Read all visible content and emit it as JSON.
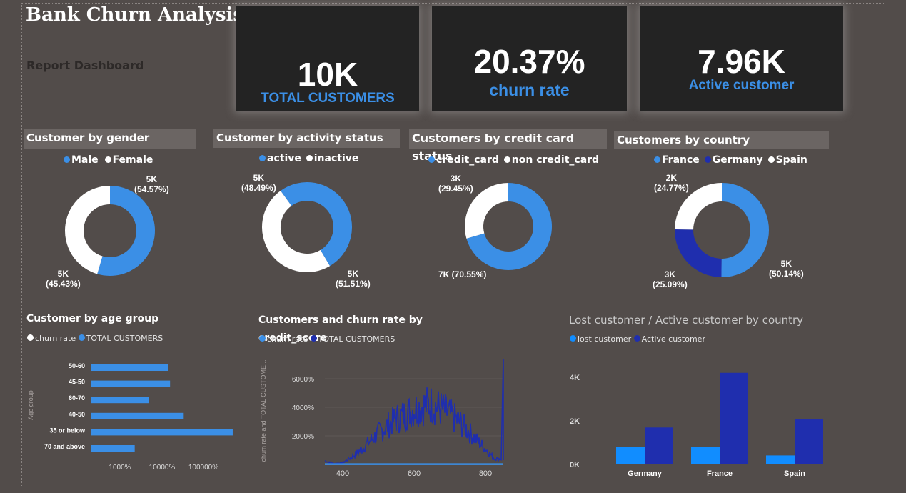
{
  "header": {
    "title": "Bank Churn Analysis",
    "subtitle": "Report Dashboard"
  },
  "kpis": [
    {
      "value": "10K",
      "label": "TOTAL CUSTOMERS"
    },
    {
      "value": "20.37%",
      "label": "churn rate"
    },
    {
      "value": "7.96K",
      "label": "Active customer"
    }
  ],
  "colors": {
    "blue": "#3b8fe6",
    "white": "#ffffff",
    "navy": "#1f2eae",
    "lightblue": "#118dff",
    "background": "#524c4a"
  },
  "chart_data": [
    {
      "type": "pie",
      "title": "Customer by gender",
      "legend": [
        "Male",
        "Female"
      ],
      "slices": [
        {
          "name": "Male",
          "value": 54.57,
          "label": "5K",
          "pct": "(54.57%)",
          "color": "#3b8fe6"
        },
        {
          "name": "Female",
          "value": 45.43,
          "label": "5K",
          "pct": "(45.43%)",
          "color": "#ffffff"
        }
      ]
    },
    {
      "type": "pie",
      "title": "Customer by activity status",
      "legend": [
        "active",
        "inactive"
      ],
      "slices": [
        {
          "name": "active",
          "value": 51.51,
          "label": "5K",
          "pct": "(51.51%)",
          "color": "#3b8fe6"
        },
        {
          "name": "inactive",
          "value": 48.49,
          "label": "5K",
          "pct": "(48.49%)",
          "color": "#ffffff"
        }
      ]
    },
    {
      "type": "pie",
      "title": "Customers by credit card status",
      "legend": [
        "credit_card",
        "non credit_card"
      ],
      "slices": [
        {
          "name": "credit_card",
          "value": 70.55,
          "label": "7K (70.55%)",
          "pct": "",
          "color": "#3b8fe6"
        },
        {
          "name": "non credit_card",
          "value": 29.45,
          "label": "3K",
          "pct": "(29.45%)",
          "color": "#ffffff"
        }
      ]
    },
    {
      "type": "pie",
      "title": "Customers by country",
      "legend": [
        "France",
        "Germany",
        "Spain"
      ],
      "slices": [
        {
          "name": "France",
          "value": 50.14,
          "label": "5K",
          "pct": "(50.14%)",
          "color": "#3b8fe6"
        },
        {
          "name": "Germany",
          "value": 25.09,
          "label": "3K",
          "pct": "(25.09%)",
          "color": "#1f2eae"
        },
        {
          "name": "Spain",
          "value": 24.77,
          "label": "2K",
          "pct": "(24.77%)",
          "color": "#ffffff"
        }
      ]
    },
    {
      "type": "bar",
      "orientation": "horizontal",
      "title": "Customer by age group",
      "legend": [
        "churn rate",
        "TOTAL CUSTOMERS"
      ],
      "ylabel": "Age group",
      "xscale": "log",
      "categories": [
        "50-60",
        "45-50",
        "60-70",
        "40-50",
        "35 or below",
        "70 and above"
      ],
      "series": [
        {
          "name": "TOTAL CUSTOMERS",
          "values": [
            86000,
            91000,
            42000,
            150000,
            900000,
            25000
          ]
        }
      ],
      "xticks": [
        "1000%",
        "10000%",
        "100000%"
      ]
    },
    {
      "type": "line",
      "title": "Customers and churn rate by credit_score",
      "legend": [
        "churn rate",
        "TOTAL CUSTOMERS"
      ],
      "ylabel": "churn rate and TOTAL CUSTOME...",
      "xlim": [
        350,
        850
      ],
      "ylim": [
        0,
        8000
      ],
      "xticks": [
        "400",
        "600",
        "800"
      ],
      "yticks": [
        "2000%",
        "4000%",
        "6000%"
      ],
      "series": [
        {
          "name": "TOTAL CUSTOMERS",
          "color": "#1f2eae",
          "x": [
            350,
            375,
            400,
            425,
            450,
            475,
            500,
            525,
            550,
            575,
            600,
            625,
            650,
            675,
            700,
            725,
            750,
            775,
            800,
            825,
            845,
            850
          ],
          "y": [
            250,
            60,
            120,
            500,
            1000,
            1600,
            2200,
            2700,
            3200,
            3500,
            3900,
            4100,
            4200,
            3900,
            3500,
            3000,
            2400,
            1700,
            1100,
            400,
            400,
            7400
          ]
        },
        {
          "name": "churn rate",
          "color": "#3b8fe6",
          "x": [
            350,
            850
          ],
          "y": [
            20,
            20
          ]
        }
      ]
    },
    {
      "type": "bar",
      "title": "Lost customer / Active customer by country",
      "legend": [
        "lost customer",
        "Active customer"
      ],
      "categories": [
        "Germany",
        "France",
        "Spain"
      ],
      "ylim": [
        0,
        5000
      ],
      "yticks": [
        "0K",
        "2K",
        "4K"
      ],
      "series": [
        {
          "name": "lost customer",
          "color": "#118dff",
          "values": [
            814,
            810,
            413
          ]
        },
        {
          "name": "Active customer",
          "color": "#1f2eae",
          "values": [
            1695,
            4204,
            2064
          ]
        }
      ]
    }
  ]
}
